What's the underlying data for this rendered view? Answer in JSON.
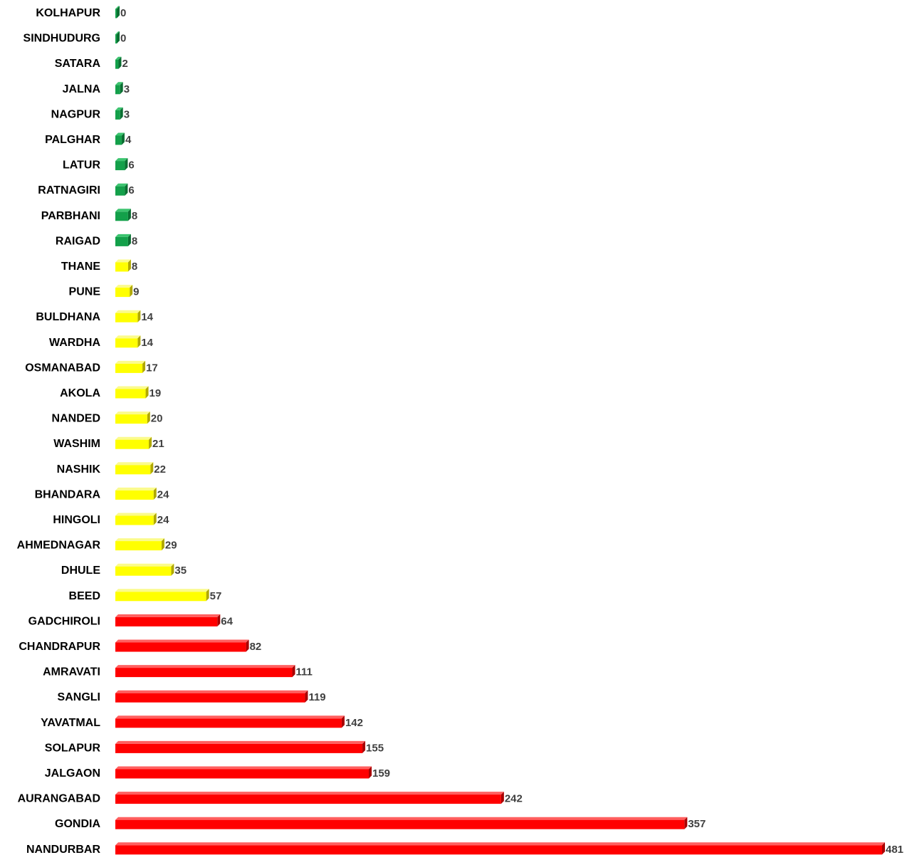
{
  "chart_data": {
    "type": "bar",
    "orientation": "horizontal",
    "title": "",
    "xlabel": "",
    "ylabel": "",
    "grid": false,
    "legend": "none",
    "xlim": [
      0,
      481
    ],
    "categories": [
      "KOLHAPUR",
      "SINDHUDURG",
      "SATARA",
      "JALNA",
      "NAGPUR",
      "PALGHAR",
      "LATUR",
      "RATNAGIRI",
      "PARBHANI",
      "RAIGAD",
      "THANE",
      "PUNE",
      "BULDHANA",
      "WARDHA",
      "OSMANABAD",
      "AKOLA",
      "NANDED",
      "WASHIM",
      "NASHIK",
      "BHANDARA",
      "HINGOLI",
      "AHMEDNAGAR",
      "DHULE",
      "BEED",
      "GADCHIROLI",
      "CHANDRAPUR",
      "AMRAVATI",
      "SANGLI",
      "YAVATMAL",
      "SOLAPUR",
      "JALGAON",
      "AURANGABAD",
      "GONDIA",
      "NANDURBAR"
    ],
    "values": [
      0,
      0,
      2,
      3,
      3,
      4,
      6,
      6,
      8,
      8,
      8,
      9,
      14,
      14,
      17,
      19,
      20,
      21,
      22,
      24,
      24,
      29,
      35,
      57,
      64,
      82,
      111,
      119,
      142,
      155,
      159,
      242,
      357,
      481
    ],
    "bar_colors": [
      "green",
      "green",
      "green",
      "green",
      "green",
      "green",
      "green",
      "green",
      "green",
      "green",
      "yellow",
      "yellow",
      "yellow",
      "yellow",
      "yellow",
      "yellow",
      "yellow",
      "yellow",
      "yellow",
      "yellow",
      "yellow",
      "yellow",
      "yellow",
      "yellow",
      "red",
      "red",
      "red",
      "red",
      "red",
      "red",
      "red",
      "red",
      "red",
      "red"
    ],
    "color_map": {
      "green": {
        "front": "#13a04a",
        "top": "#3cc46f",
        "side": "#0b6e32"
      },
      "yellow": {
        "front": "#ffff00",
        "top": "#fbfb8c",
        "side": "#b0a800"
      },
      "red": {
        "front": "#ff0000",
        "top": "#ff6060",
        "side": "#a80000"
      }
    }
  }
}
